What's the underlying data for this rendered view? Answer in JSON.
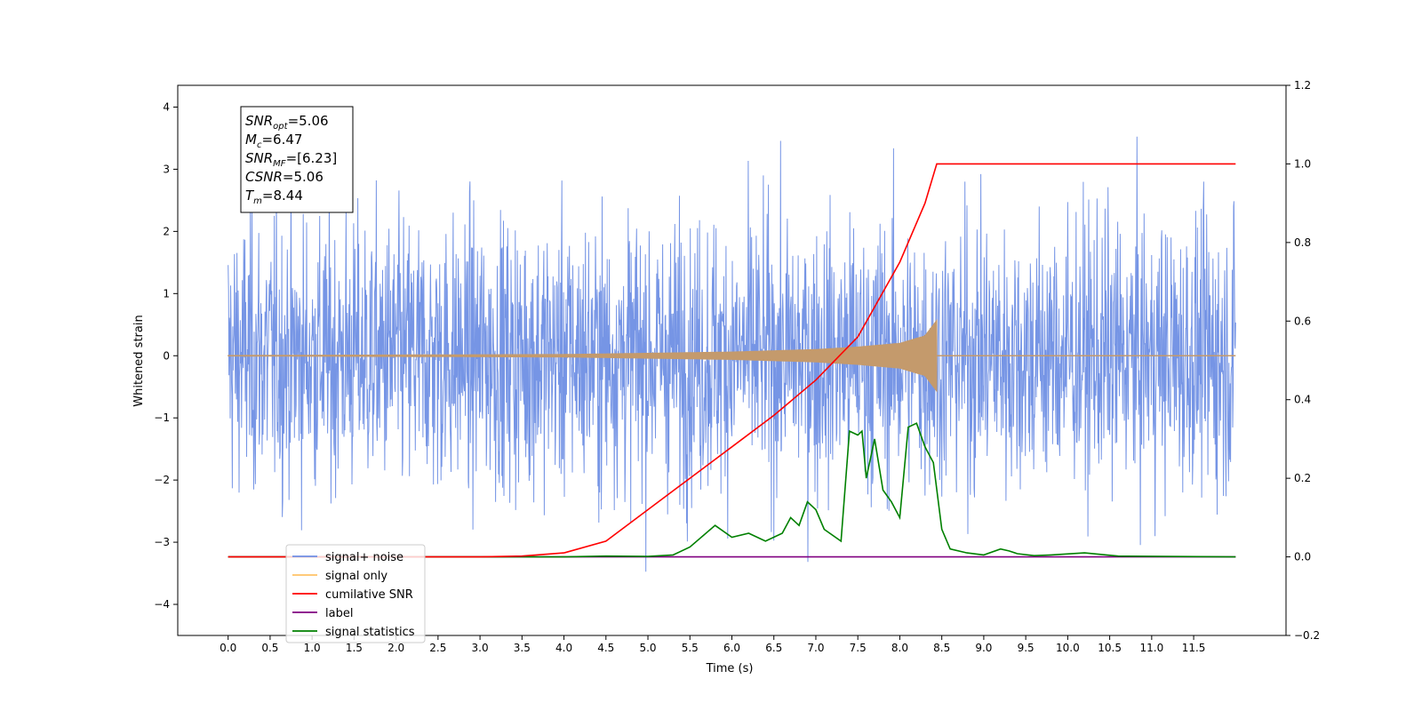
{
  "chart_data": {
    "type": "line",
    "xlabel": "Time (s)",
    "ylabel": "Whitened strain",
    "xlim": [
      -0.6,
      12.6
    ],
    "ylim_left": [
      -4.5,
      4.35
    ],
    "ylim_right": [
      -0.2,
      1.2
    ],
    "x_ticks": [
      0.0,
      0.5,
      1.0,
      1.5,
      2.0,
      2.5,
      3.0,
      3.5,
      4.0,
      4.5,
      5.0,
      5.5,
      6.0,
      6.5,
      7.0,
      7.5,
      8.0,
      8.5,
      9.0,
      9.5,
      10.0,
      10.5,
      11.0,
      11.5
    ],
    "x_tick_labels": [
      "0.0",
      "0.5",
      "1.0",
      "1.5",
      "2.0",
      "2.5",
      "3.0",
      "3.5",
      "4.0",
      "4.5",
      "5.0",
      "5.5",
      "6.0",
      "6.5",
      "7.0",
      "7.5",
      "8.0",
      "8.5",
      "9.0",
      "9.5",
      "10.0",
      "10.5",
      "11.0",
      "11.5"
    ],
    "y_ticks_left": [
      4,
      3,
      2,
      1,
      0,
      -1,
      -2,
      -3,
      -4
    ],
    "y_tick_labels_left": [
      "4",
      "3",
      "2",
      "1",
      "0",
      "−1",
      "−2",
      "−3",
      "−4"
    ],
    "y_ticks_right": [
      1.2,
      1.0,
      0.8,
      0.6,
      0.4,
      0.2,
      0.0,
      -0.2
    ],
    "y_tick_labels_right": [
      "1.2",
      "1.0",
      "0.8",
      "0.6",
      "0.4",
      "0.2",
      "0.0",
      "−0.2"
    ],
    "grid": false,
    "legend_position": "lower-left",
    "series": [
      {
        "name": "signal+ noise",
        "axis": "left",
        "color": "#6f8fe4",
        "kind": "noise-band",
        "x_range": [
          0.0,
          12.0
        ],
        "envelope_approx": [
          -2.5,
          2.5
        ],
        "extremes": {
          "max": 4.0,
          "min": -3.95
        }
      },
      {
        "name": "signal only",
        "axis": "left",
        "color": "#c49a6c",
        "kind": "chirp",
        "x_range": [
          0.0,
          8.44
        ],
        "amplitude": {
          "x": [
            0.0,
            4.0,
            6.0,
            7.0,
            7.5,
            8.0,
            8.3,
            8.44
          ],
          "y": [
            0.005,
            0.02,
            0.06,
            0.1,
            0.14,
            0.2,
            0.32,
            0.57
          ]
        }
      },
      {
        "name": "cumilative SNR",
        "axis": "right",
        "color": "#ff0000",
        "x": [
          0.0,
          3.0,
          3.5,
          4.0,
          4.5,
          5.0,
          5.5,
          6.0,
          6.5,
          7.0,
          7.5,
          8.0,
          8.3,
          8.44,
          9.0,
          10.0,
          11.0,
          12.0
        ],
        "y": [
          0.0,
          0.0,
          0.002,
          0.01,
          0.04,
          0.12,
          0.2,
          0.28,
          0.36,
          0.45,
          0.56,
          0.75,
          0.9,
          1.0,
          1.0,
          1.0,
          1.0,
          1.0
        ]
      },
      {
        "name": "label",
        "axis": "right",
        "color": "#800080",
        "x": [
          0.0,
          12.0
        ],
        "y": [
          0.0,
          0.0
        ]
      },
      {
        "name": "signal statistics",
        "axis": "right",
        "color": "#008000",
        "x": [
          0.0,
          4.0,
          4.5,
          5.0,
          5.3,
          5.5,
          5.8,
          6.0,
          6.2,
          6.4,
          6.6,
          6.7,
          6.8,
          6.9,
          7.0,
          7.1,
          7.3,
          7.4,
          7.5,
          7.55,
          7.6,
          7.7,
          7.8,
          7.9,
          8.0,
          8.1,
          8.2,
          8.3,
          8.4,
          8.5,
          8.6,
          8.8,
          9.0,
          9.2,
          9.3,
          9.4,
          9.6,
          9.8,
          10.2,
          10.6,
          12.0
        ],
        "y": [
          0.0,
          0.0,
          0.002,
          0.001,
          0.005,
          0.025,
          0.08,
          0.05,
          0.06,
          0.04,
          0.06,
          0.1,
          0.08,
          0.14,
          0.12,
          0.07,
          0.04,
          0.32,
          0.31,
          0.32,
          0.2,
          0.3,
          0.17,
          0.14,
          0.1,
          0.33,
          0.34,
          0.28,
          0.24,
          0.07,
          0.02,
          0.01,
          0.005,
          0.02,
          0.015,
          0.008,
          0.003,
          0.005,
          0.01,
          0.002,
          0.0
        ]
      }
    ],
    "annotation_box": {
      "lines": [
        {
          "base": "SNR",
          "sub": "opt",
          "value": "=5.06"
        },
        {
          "base": "M",
          "sub": "c",
          "value": "=6.47"
        },
        {
          "base": "SNR",
          "sub": "MF",
          "value": "=[6.23]"
        },
        {
          "base": "CSNR",
          "sub": "",
          "value": "=5.06"
        },
        {
          "base": "T",
          "sub": "m",
          "value": "=8.44"
        }
      ]
    }
  }
}
